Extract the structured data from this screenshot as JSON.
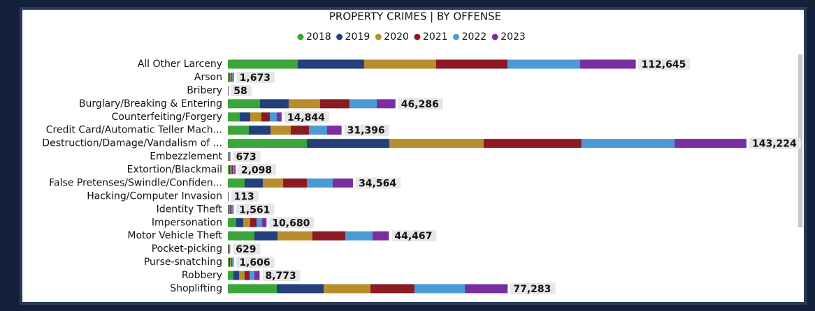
{
  "chart_data": {
    "type": "stacked-bar-horizontal",
    "title": "PROPERTY CRIMES | BY OFFENSE",
    "categories": [
      "All Other Larceny",
      "Arson",
      "Bribery",
      "Burglary/Breaking & Entering",
      "Counterfeiting/Forgery",
      "Credit Card/Automatic Teller Mach...",
      "Destruction/Damage/Vandalism of ...",
      "Embezzlement",
      "Extortion/Blackmail",
      "False Pretenses/Swindle/Confiden...",
      "Hacking/Computer Invasion",
      "Identity Theft",
      "Impersonation",
      "Motor Vehicle Theft",
      "Pocket-picking",
      "Purse-snatching",
      "Robbery",
      "Shoplifting"
    ],
    "series": [
      {
        "name": "2018",
        "color": "#3aa63a",
        "values": [
          19300,
          280,
          10,
          8878,
          3281,
          5790,
          21809,
          120,
          380,
          4632,
          20,
          180,
          2316,
          7334,
          110,
          330,
          1544,
          13510
        ]
      },
      {
        "name": "2019",
        "color": "#243f7a",
        "values": [
          18335,
          270,
          9,
          7913,
          2895,
          5983,
          22774,
          110,
          340,
          5018,
          18,
          200,
          1930,
          6369,
          100,
          270,
          1544,
          12931
        ]
      },
      {
        "name": "2020",
        "color": "#b88d2e",
        "values": [
          19880,
          280,
          10,
          8685,
          3088,
          5597,
          26055,
          110,
          340,
          5597,
          18,
          260,
          1930,
          9650,
          90,
          250,
          1544,
          12931
        ]
      },
      {
        "name": "2021",
        "color": "#8b1a22",
        "values": [
          19690,
          290,
          10,
          8106,
          2316,
          5018,
          27020,
          110,
          330,
          6562,
          19,
          330,
          1737,
          9071,
          100,
          270,
          1351,
          12159
        ]
      },
      {
        "name": "2022",
        "color": "#4a9ad8",
        "values": [
          20070,
          290,
          10,
          7527,
          1930,
          5018,
          25669,
          120,
          360,
          7141,
          20,
          340,
          1544,
          7527,
          120,
          260,
          1351,
          13896
        ]
      },
      {
        "name": "2023",
        "color": "#7a2fa0",
        "values": [
          15370,
          263,
          9,
          5177,
          1334,
          3990,
          19897,
          103,
          348,
          5614,
          18,
          251,
          1223,
          4516,
          109,
          226,
          1439,
          11856
        ]
      }
    ],
    "totals": [
      112645,
      1673,
      58,
      46286,
      14844,
      31396,
      143224,
      673,
      2098,
      34564,
      113,
      1561,
      10680,
      44467,
      629,
      1606,
      8773,
      77283
    ],
    "total_labels": [
      "112,645",
      "1,673",
      "58",
      "46,286",
      "14,844",
      "31,396",
      "143,224",
      "673",
      "2,098",
      "34,564",
      "113",
      "1,561",
      "10,680",
      "44,467",
      "629",
      "1,606",
      "8,773",
      "77,283"
    ]
  }
}
